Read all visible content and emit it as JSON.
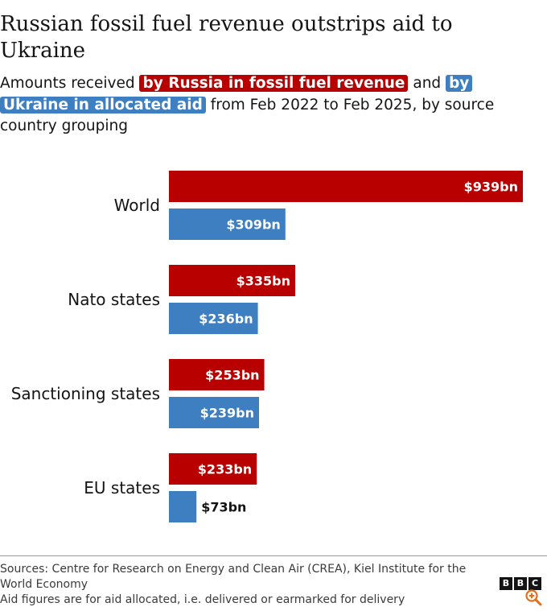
{
  "header": {
    "title": "Russian fossil fuel revenue outstrips aid to Ukraine",
    "subtitle_pre": "Amounts received ",
    "subtitle_red": "by Russia in fossil fuel revenue",
    "subtitle_mid": " and ",
    "subtitle_blue": "by Ukraine in allocated aid",
    "subtitle_post": " from Feb 2022 to Feb 2025, by source country grouping"
  },
  "chart_data": {
    "type": "bar",
    "orientation": "horizontal",
    "title": "Russian fossil fuel revenue outstrips aid to Ukraine",
    "categories": [
      "World",
      "Nato states",
      "Sanctioning states",
      "EU states"
    ],
    "series": [
      {
        "name": "by Russia in fossil fuel revenue",
        "color": "#b80000",
        "values": [
          939,
          335,
          253,
          233
        ],
        "labels": [
          "$939bn",
          "$335bn",
          "$253bn",
          "$233bn"
        ]
      },
      {
        "name": "by Ukraine in allocated aid",
        "color": "#3d7fc0",
        "values": [
          309,
          236,
          239,
          73
        ],
        "labels": [
          "$309bn",
          "$236bn",
          "$239bn",
          "$73bn"
        ]
      }
    ],
    "unit": "$bn",
    "xlim": [
      0,
      939
    ],
    "grid": false,
    "legend": "inline in subtitle"
  },
  "footer": {
    "sources": "Sources: Centre for Research on Energy and Clean Air (CREA), Kiel Institute for the World Economy",
    "note": "Aid figures are for aid allocated, i.e. delivered or earmarked for delivery"
  },
  "branding": {
    "logo_letters": [
      "B",
      "B",
      "C"
    ],
    "zoom_icon": "zoom-in-icon"
  },
  "colors": {
    "russia": "#b80000",
    "ukraine": "#3d7fc0",
    "text": "#141414"
  }
}
